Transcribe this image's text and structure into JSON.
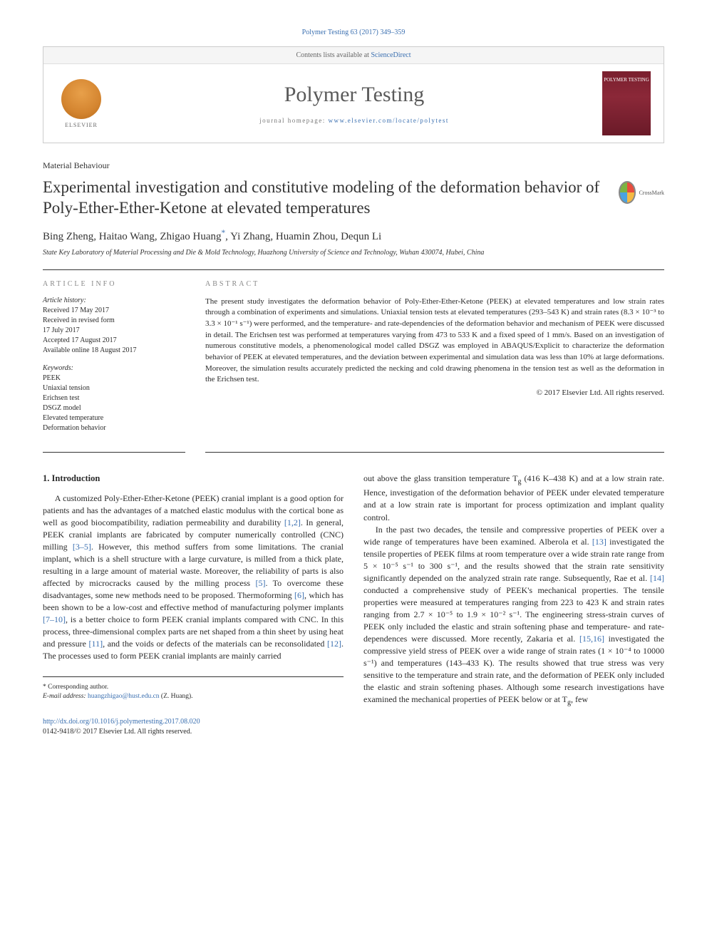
{
  "citation": "Polymer Testing 63 (2017) 349–359",
  "header": {
    "contents_prefix": "Contents lists available at ",
    "contents_link": "ScienceDirect",
    "journal_name": "Polymer Testing",
    "homepage_prefix": "journal homepage: ",
    "homepage_url": "www.elsevier.com/locate/polytest",
    "publisher": "ELSEVIER",
    "cover_label": "POLYMER TESTING"
  },
  "article_type": "Material Behaviour",
  "title": "Experimental investigation and constitutive modeling of the deformation behavior of Poly-Ether-Ether-Ketone at elevated temperatures",
  "crossmark_label": "CrossMark",
  "authors_html": "Bing Zheng, Haitao Wang, Zhigao Huang<sup class='corr'>*</sup>, Yi Zhang, Huamin Zhou, Dequn Li",
  "affiliation": "State Key Laboratory of Material Processing and Die & Mold Technology, Huazhong University of Science and Technology, Wuhan 430074, Hubei, China",
  "info": {
    "heading": "ARTICLE INFO",
    "history_label": "Article history:",
    "history": [
      "Received 17 May 2017",
      "Received in revised form",
      "17 July 2017",
      "Accepted 17 August 2017",
      "Available online 18 August 2017"
    ],
    "keywords_label": "Keywords:",
    "keywords": [
      "PEEK",
      "Uniaxial tension",
      "Erichsen test",
      "DSGZ model",
      "Elevated temperature",
      "Deformation behavior"
    ]
  },
  "abstract": {
    "heading": "ABSTRACT",
    "text": "The present study investigates the deformation behavior of Poly-Ether-Ether-Ketone (PEEK) at elevated temperatures and low strain rates through a combination of experiments and simulations. Uniaxial tension tests at elevated temperatures (293–543 K) and strain rates (8.3 × 10⁻³ to 3.3 × 10⁻¹ s⁻¹) were performed, and the temperature- and rate-dependencies of the deformation behavior and mechanism of PEEK were discussed in detail. The Erichsen test was performed at temperatures varying from 473 to 533 K and a fixed speed of 1 mm/s. Based on an investigation of numerous constitutive models, a phenomenological model called DSGZ was employed in ABAQUS/Explicit to characterize the deformation behavior of PEEK at elevated temperatures, and the deviation between experimental and simulation data was less than 10% at large deformations. Moreover, the simulation results accurately predicted the necking and cold drawing phenomena in the tension test as well as the deformation in the Erichsen test.",
    "copyright": "© 2017 Elsevier Ltd. All rights reserved."
  },
  "section1": {
    "heading": "1. Introduction",
    "p1_a": "A customized Poly-Ether-Ether-Ketone (PEEK) cranial implant is a good option for patients and has the advantages of a matched elastic modulus with the cortical bone as well as good biocompatibility, radiation permeability and durability ",
    "r1": "[1,2]",
    "p1_b": ". In general, PEEK cranial implants are fabricated by computer numerically controlled (CNC) milling ",
    "r2": "[3–5]",
    "p1_c": ". However, this method suffers from some limitations. The cranial implant, which is a shell structure with a large curvature, is milled from a thick plate, resulting in a large amount of material waste. Moreover, the reliability of parts is also affected by microcracks caused by the milling process ",
    "r3": "[5]",
    "p1_d": ". To overcome these disadvantages, some new methods need to be proposed. Thermoforming ",
    "r4": "[6]",
    "p1_e": ", which has been shown to be a low-cost and effective method of manufacturing polymer implants ",
    "r5": "[7–10]",
    "p1_f": ", is a better choice to form PEEK cranial implants compared with CNC. In this process, three-dimensional complex parts are net shaped from a thin sheet by using heat and pressure ",
    "r6": "[11]",
    "p1_g": ", and the voids or defects of the materials can be reconsolidated ",
    "r7": "[12]",
    "p1_h": ". The processes used to form PEEK cranial implants are mainly carried",
    "p2_a": "out above the glass transition temperature T",
    "p2_sub": "g",
    "p2_b": " (416 K–438 K) and at a low strain rate. Hence, investigation of the deformation behavior of PEEK under elevated temperature and at a low strain rate is important for process optimization and implant quality control.",
    "p3_a": "In the past two decades, the tensile and compressive properties of PEEK over a wide range of temperatures have been examined. Alberola et al. ",
    "r8": "[13]",
    "p3_b": " investigated the tensile properties of PEEK films at room temperature over a wide strain rate range from 5 × 10⁻⁵ s⁻¹ to 300 s⁻¹, and the results showed that the strain rate sensitivity significantly depended on the analyzed strain rate range. Subsequently, Rae et al. ",
    "r9": "[14]",
    "p3_c": " conducted a comprehensive study of PEEK's mechanical properties. The tensile properties were measured at temperatures ranging from 223 to 423 K and strain rates ranging from 2.7 × 10⁻⁵ to 1.9 × 10⁻² s⁻¹. The engineering stress-strain curves of PEEK only included the elastic and strain softening phase and temperature- and rate-dependences were discussed. More recently, Zakaria et al. ",
    "r10": "[15,16]",
    "p3_d": " investigated the compressive yield stress of PEEK over a wide range of strain rates (1 × 10⁻⁴ to 10000 s⁻¹) and temperatures (143–433 K). The results showed that true stress was very sensitive to the temperature and strain rate, and the deformation of PEEK only included the elastic and strain softening phases. Although some research investigations have examined the mechanical properties of PEEK below or at T",
    "p3_sub": "g",
    "p3_e": ", few"
  },
  "footer": {
    "corr_label": "* Corresponding author.",
    "email_label": "E-mail address: ",
    "email": "huangzhigao@hust.edu.cn",
    "email_suffix": " (Z. Huang).",
    "doi": "http://dx.doi.org/10.1016/j.polymertesting.2017.08.020",
    "issn_line": "0142-9418/© 2017 Elsevier Ltd. All rights reserved."
  }
}
